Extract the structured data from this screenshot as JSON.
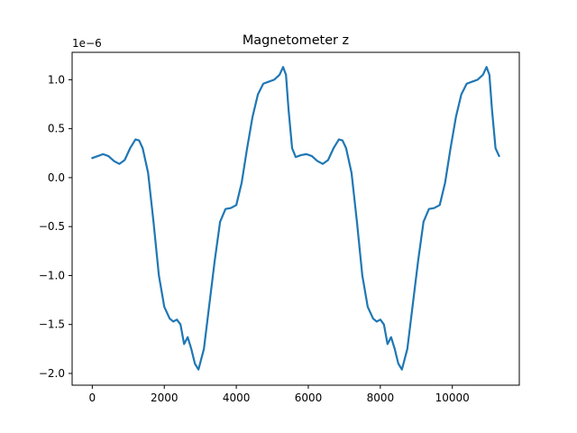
{
  "chart_data": {
    "type": "line",
    "title": "Magnetometer z",
    "xlabel": "",
    "ylabel": "",
    "y_offset_label": "1e−6",
    "xlim": [
      -560,
      11860
    ],
    "ylim": [
      -2.12,
      1.28
    ],
    "x_ticks": [
      0,
      2000,
      4000,
      6000,
      8000,
      10000
    ],
    "x_tick_labels": [
      "0",
      "2000",
      "4000",
      "6000",
      "8000",
      "10000"
    ],
    "y_ticks": [
      1.0,
      0.5,
      0.0,
      -0.5,
      -1.0,
      -1.5,
      -2.0
    ],
    "y_tick_labels": [
      "1.0",
      "0.5",
      "0.0",
      "−0.5",
      "−1.0",
      "−1.5",
      "−2.0"
    ],
    "grid": false,
    "series": [
      {
        "color": "#1f77b4",
        "points": [
          [
            0,
            0.2
          ],
          [
            150,
            0.22
          ],
          [
            300,
            0.24
          ],
          [
            450,
            0.22
          ],
          [
            600,
            0.17
          ],
          [
            750,
            0.14
          ],
          [
            900,
            0.18
          ],
          [
            1050,
            0.3
          ],
          [
            1200,
            0.39
          ],
          [
            1300,
            0.38
          ],
          [
            1400,
            0.3
          ],
          [
            1550,
            0.05
          ],
          [
            1700,
            -0.45
          ],
          [
            1850,
            -1.0
          ],
          [
            2000,
            -1.32
          ],
          [
            2150,
            -1.44
          ],
          [
            2250,
            -1.47
          ],
          [
            2350,
            -1.45
          ],
          [
            2450,
            -1.5
          ],
          [
            2550,
            -1.7
          ],
          [
            2650,
            -1.63
          ],
          [
            2750,
            -1.75
          ],
          [
            2850,
            -1.9
          ],
          [
            2950,
            -1.96
          ],
          [
            3100,
            -1.75
          ],
          [
            3250,
            -1.3
          ],
          [
            3400,
            -0.85
          ],
          [
            3550,
            -0.45
          ],
          [
            3700,
            -0.32
          ],
          [
            3850,
            -0.31
          ],
          [
            4000,
            -0.28
          ],
          [
            4150,
            -0.05
          ],
          [
            4300,
            0.3
          ],
          [
            4450,
            0.62
          ],
          [
            4600,
            0.85
          ],
          [
            4750,
            0.96
          ],
          [
            4900,
            0.98
          ],
          [
            5050,
            1.0
          ],
          [
            5200,
            1.05
          ],
          [
            5300,
            1.13
          ],
          [
            5380,
            1.05
          ],
          [
            5450,
            0.7
          ],
          [
            5550,
            0.3
          ],
          [
            5650,
            0.21
          ],
          [
            5800,
            0.23
          ],
          [
            5950,
            0.24
          ],
          [
            6100,
            0.22
          ],
          [
            6250,
            0.17
          ],
          [
            6400,
            0.14
          ],
          [
            6550,
            0.18
          ],
          [
            6700,
            0.3
          ],
          [
            6850,
            0.39
          ],
          [
            6950,
            0.38
          ],
          [
            7050,
            0.3
          ],
          [
            7200,
            0.05
          ],
          [
            7350,
            -0.45
          ],
          [
            7500,
            -1.0
          ],
          [
            7650,
            -1.32
          ],
          [
            7800,
            -1.44
          ],
          [
            7900,
            -1.47
          ],
          [
            8000,
            -1.45
          ],
          [
            8100,
            -1.5
          ],
          [
            8200,
            -1.7
          ],
          [
            8300,
            -1.63
          ],
          [
            8400,
            -1.75
          ],
          [
            8500,
            -1.9
          ],
          [
            8600,
            -1.96
          ],
          [
            8750,
            -1.75
          ],
          [
            8900,
            -1.3
          ],
          [
            9050,
            -0.85
          ],
          [
            9200,
            -0.45
          ],
          [
            9350,
            -0.32
          ],
          [
            9500,
            -0.31
          ],
          [
            9650,
            -0.28
          ],
          [
            9800,
            -0.05
          ],
          [
            9950,
            0.3
          ],
          [
            10100,
            0.62
          ],
          [
            10250,
            0.85
          ],
          [
            10400,
            0.96
          ],
          [
            10550,
            0.98
          ],
          [
            10700,
            1.0
          ],
          [
            10850,
            1.05
          ],
          [
            10950,
            1.13
          ],
          [
            11030,
            1.05
          ],
          [
            11100,
            0.7
          ],
          [
            11200,
            0.3
          ],
          [
            11300,
            0.22
          ]
        ]
      }
    ]
  }
}
